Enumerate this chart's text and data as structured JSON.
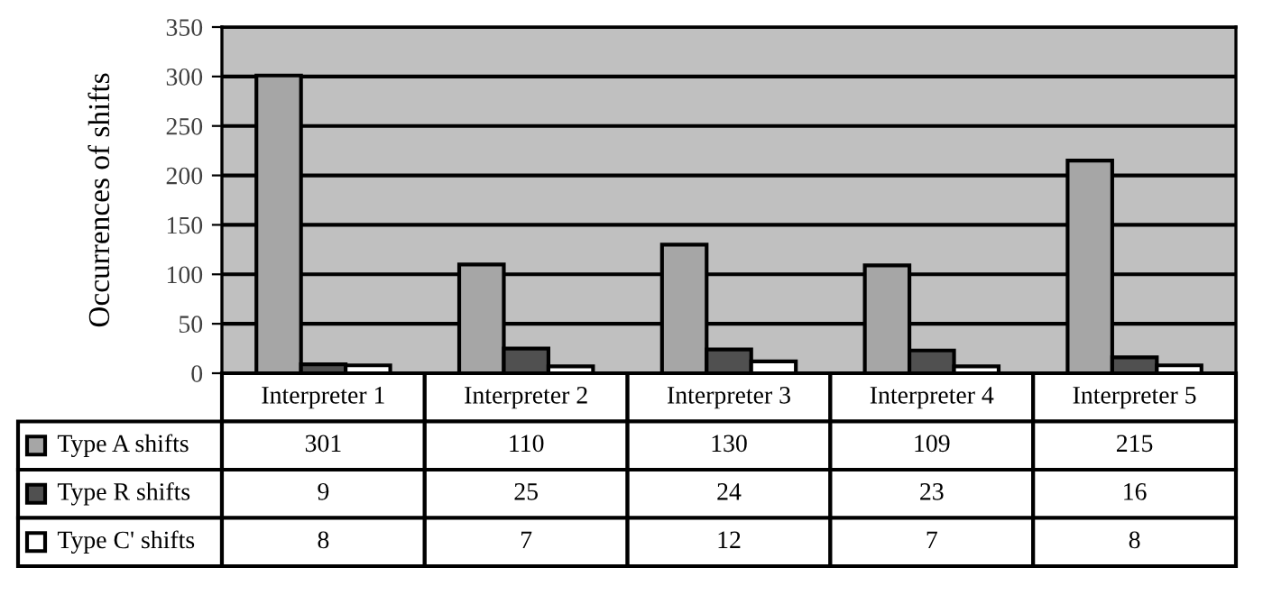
{
  "chart_data": {
    "type": "bar",
    "ylabel": "Occurrences of shifts",
    "categories": [
      "Interpreter 1",
      "Interpreter 2",
      "Interpreter 3",
      "Interpreter 4",
      "Interpreter 5"
    ],
    "series": [
      {
        "name": "Type A shifts",
        "color": "#a6a6a6",
        "values": [
          301,
          110,
          130,
          109,
          215
        ]
      },
      {
        "name": "Type R shifts",
        "color": "#505050",
        "values": [
          9,
          25,
          24,
          23,
          16
        ]
      },
      {
        "name": "Type C' shifts",
        "color": "#ffffff",
        "values": [
          8,
          7,
          12,
          7,
          8
        ]
      }
    ],
    "ylim": [
      0,
      350
    ],
    "yticks": [
      0,
      50,
      100,
      150,
      200,
      250,
      300,
      350
    ],
    "grid": "y",
    "legend": "bottom left",
    "data_labels": true
  }
}
